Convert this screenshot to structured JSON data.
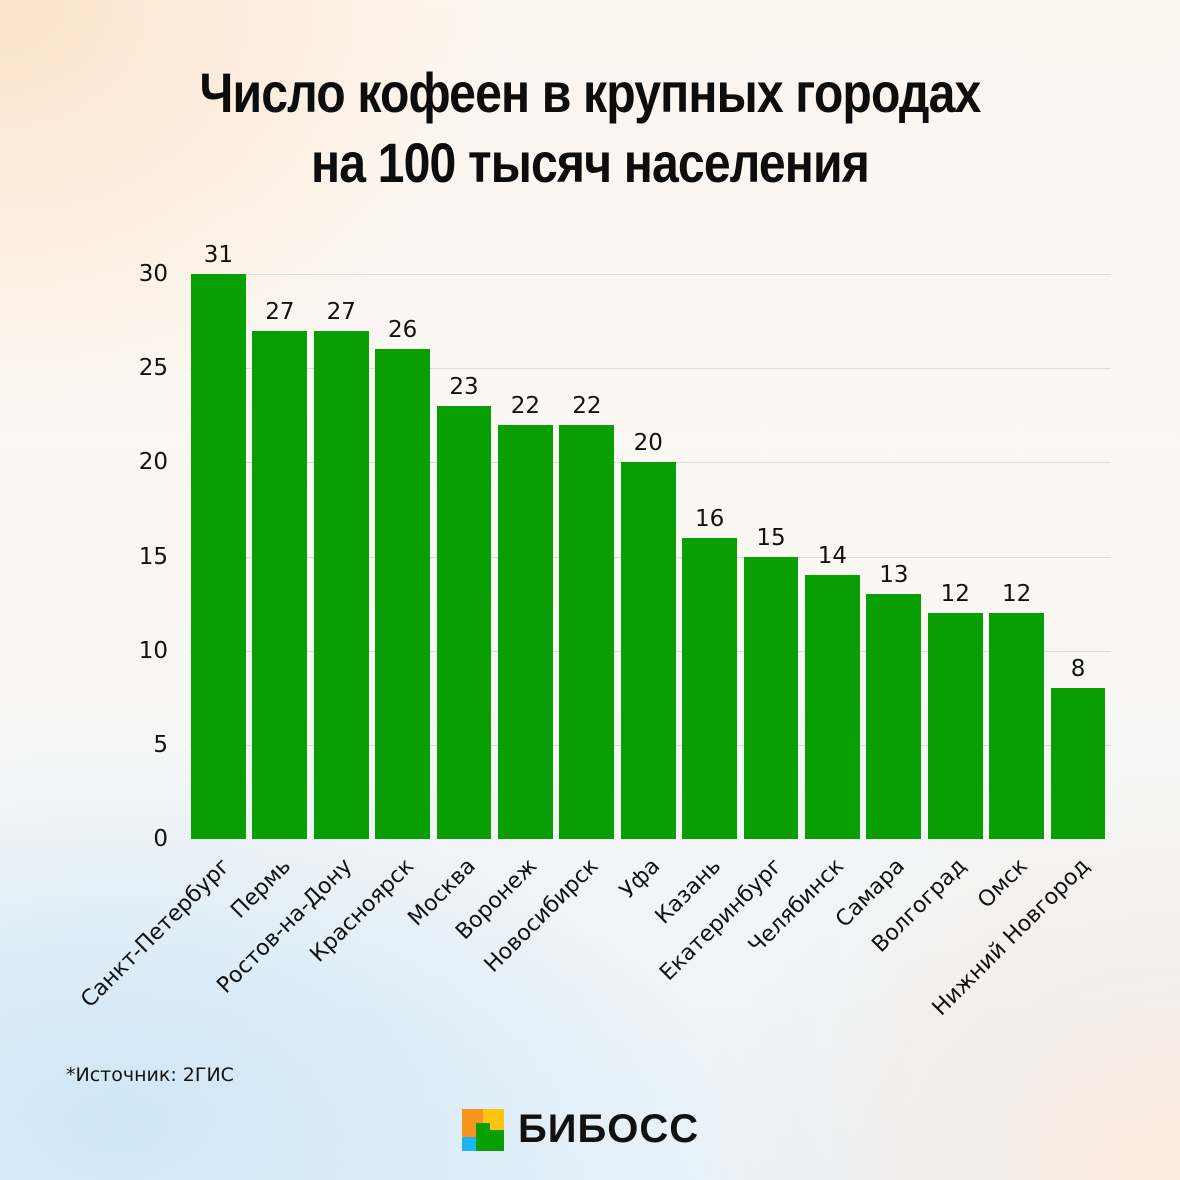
{
  "title": {
    "line1": "Число кофеен в крупных городах",
    "line2": "на 100 тысяч населения"
  },
  "source": "*Источник: 2ГИС",
  "logo": {
    "text": "БИБОСС"
  },
  "colors": {
    "bar": "#0a9e05",
    "grid": "#dcdcdc"
  },
  "chart_data": {
    "type": "bar",
    "title": "Число кофеен в крупных городах на 100 тысяч населения",
    "xlabel": "",
    "ylabel": "",
    "ylim": [
      0,
      30
    ],
    "yticks": [
      0,
      5,
      10,
      15,
      20,
      25,
      30
    ],
    "grid": true,
    "legend": null,
    "categories": [
      "Санкт-Петербург",
      "Пермь",
      "Ростов-на-Дону",
      "Красноярск",
      "Москва",
      "Воронеж",
      "Новосибирск",
      "Уфа",
      "Казань",
      "Екатеринбург",
      "Челябинск",
      "Самара",
      "Волгоград",
      "Омск",
      "Нижний Новгород"
    ],
    "values": [
      31,
      27,
      27,
      26,
      23,
      22,
      22,
      20,
      16,
      15,
      14,
      13,
      12,
      12,
      8
    ],
    "annotations": "Bar for Санкт-Петербург (31) is clipped at the 30 axis maximum"
  }
}
